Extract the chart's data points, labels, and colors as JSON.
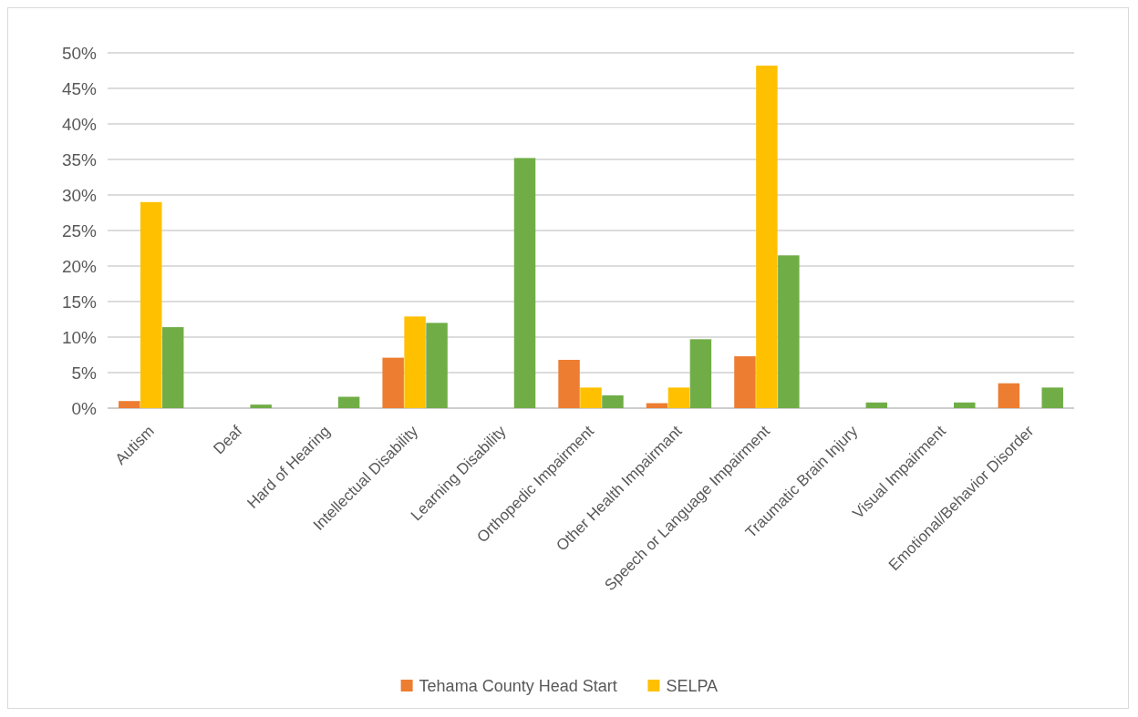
{
  "chart_data": {
    "type": "bar",
    "categories": [
      "Autism",
      "Deaf",
      "Hard of Hearing",
      "Intellectual Disability",
      "Learning Disability",
      "Orthopedic Impairment",
      "Other Health Impairmant",
      "Speech or Language Impairment",
      "Traumatic Brain Injury",
      "Visual Impairment",
      "Emotional/Behavior Disorder"
    ],
    "series": [
      {
        "name": "Tehama County Head Start",
        "color": "#ed7d31",
        "values": [
          1,
          0,
          0,
          7.1,
          0,
          6.8,
          0.7,
          7.3,
          0,
          0,
          3.5
        ]
      },
      {
        "name": "SELPA",
        "color": "#ffc000",
        "values": [
          29,
          0,
          0,
          12.9,
          0,
          2.9,
          2.9,
          48.2,
          0,
          0,
          0
        ]
      },
      {
        "color": "#70ad47",
        "values": [
          11.4,
          0.5,
          1.6,
          12,
          35.2,
          1.8,
          9.7,
          21.5,
          0.8,
          0.8,
          2.9
        ]
      }
    ],
    "ylim": [
      0,
      50
    ],
    "yticks": [
      {
        "value": 0,
        "label": "0%"
      },
      {
        "value": 5,
        "label": "5%"
      },
      {
        "value": 10,
        "label": "10%"
      },
      {
        "value": 15,
        "label": "15%"
      },
      {
        "value": 20,
        "label": "20%"
      },
      {
        "value": 25,
        "label": "25%"
      },
      {
        "value": 30,
        "label": "30%"
      },
      {
        "value": 35,
        "label": "35%"
      },
      {
        "value": 40,
        "label": "40%"
      },
      {
        "value": 45,
        "label": "45%"
      },
      {
        "value": 50,
        "label": "50%"
      }
    ],
    "grid": "y",
    "legend": "bottom"
  }
}
